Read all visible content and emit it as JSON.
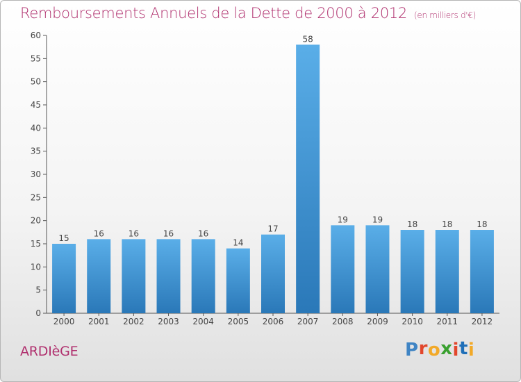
{
  "header": {
    "title": "Remboursements Annuels de la Dette de 2000 à 2012",
    "unit": "(en milliers d'€)"
  },
  "footer": {
    "town": "ARDIèGE",
    "logo": [
      "P",
      "r",
      "o",
      "x",
      "i",
      "t",
      "i"
    ],
    "logo_colors": [
      "#3f84c4",
      "#e2462b",
      "#f2a928",
      "#39a02f",
      "#e2462b",
      "#1f6fb8",
      "#f2a928"
    ]
  },
  "chart_data": {
    "type": "bar",
    "title": "Remboursements Annuels de la Dette de 2000 à 2012",
    "subtitle": "(en milliers d'€)",
    "categories": [
      "2000",
      "2001",
      "2002",
      "2003",
      "2004",
      "2005",
      "2006",
      "2007",
      "2008",
      "2009",
      "2010",
      "2011",
      "2012"
    ],
    "values": [
      15,
      16,
      16,
      16,
      16,
      14,
      17,
      58,
      19,
      19,
      18,
      18,
      18
    ],
    "ylim": [
      0,
      60
    ],
    "yticks": [
      0,
      5,
      10,
      15,
      20,
      25,
      30,
      35,
      40,
      45,
      50,
      55,
      60
    ],
    "grid": false,
    "bar_color_top": "#5aaee8",
    "bar_color_bottom": "#2a78b8"
  }
}
